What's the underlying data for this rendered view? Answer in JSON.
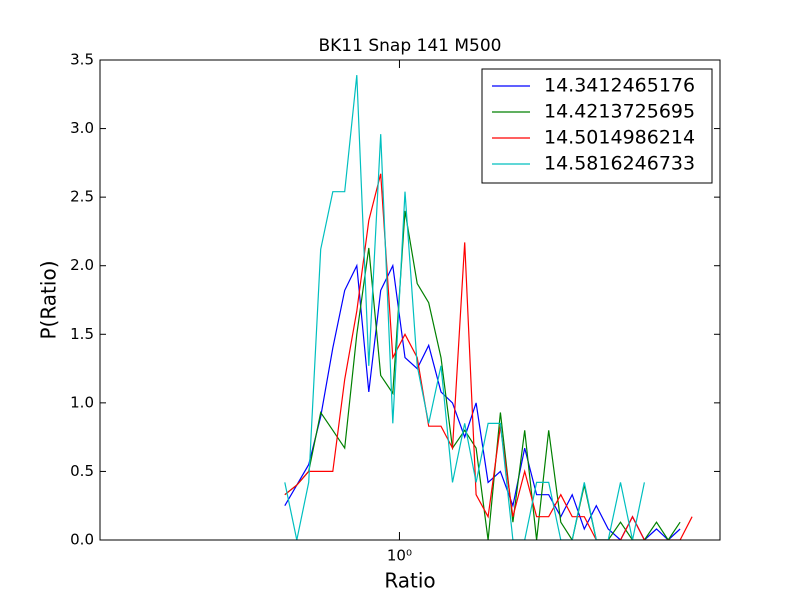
{
  "chart_data": {
    "type": "line",
    "title": "BK11 Snap 141 M500",
    "xlabel": "Ratio",
    "ylabel": "P(Ratio)",
    "xscale": "log",
    "legend": "upper right",
    "xlim": [
      0.2,
      5.6
    ],
    "xticks": [
      {
        "value": 1,
        "label": "10⁰"
      }
    ],
    "ylim": [
      0,
      3.5
    ],
    "yticks": [
      {
        "value": 0,
        "label": "0.0"
      },
      0.5,
      {
        "value": 1,
        "label": "1.0"
      },
      1.5,
      {
        "value": 2,
        "label": "2.0"
      },
      2.5,
      {
        "value": 3,
        "label": "3.0"
      },
      3.5
    ],
    "x": [
      0.54,
      0.576,
      0.614,
      0.655,
      0.699,
      0.745,
      0.795,
      0.848,
      0.904,
      0.965,
      1.03,
      1.1,
      1.17,
      1.25,
      1.33,
      1.42,
      1.51,
      1.61,
      1.72,
      1.84,
      1.96,
      2.09,
      2.23,
      2.38,
      2.53,
      2.7,
      2.88,
      3.07,
      3.28,
      3.5,
      3.73,
      3.98,
      4.24,
      4.52,
      4.82
    ],
    "series": [
      {
        "name": "14.3412465176",
        "color": "#0000ff",
        "values": [
          0.25,
          0.4,
          0.55,
          0.9,
          1.4,
          1.82,
          2.0,
          1.08,
          1.82,
          2.0,
          1.33,
          1.25,
          1.42,
          1.08,
          1.0,
          0.75,
          1.0,
          0.42,
          0.5,
          0.25,
          0.67,
          0.33,
          0.33,
          0.17,
          0.33,
          0.08,
          0.25,
          0.08,
          0.0,
          0.17,
          0.0,
          0.08,
          0.0,
          0.08,
          null
        ]
      },
      {
        "name": "14.4213725695",
        "color": "#008000",
        "values": [
          0.33,
          0.4,
          0.5,
          0.93,
          0.8,
          0.67,
          1.5,
          2.13,
          1.2,
          1.07,
          2.4,
          1.87,
          1.73,
          1.33,
          0.67,
          0.8,
          0.67,
          0.0,
          0.93,
          0.13,
          0.8,
          0.0,
          0.8,
          0.13,
          0.0,
          0.4,
          0.0,
          0.0,
          0.13,
          0.0,
          0.0,
          0.13,
          0.0,
          0.13,
          null
        ]
      },
      {
        "name": "14.5014986214",
        "color": "#ff0000",
        "values": [
          0.33,
          0.4,
          0.5,
          0.5,
          0.5,
          1.17,
          1.67,
          2.33,
          2.67,
          1.33,
          1.5,
          1.33,
          0.83,
          0.83,
          0.67,
          2.17,
          0.33,
          0.17,
          0.83,
          0.17,
          0.5,
          0.17,
          0.17,
          0.33,
          0.17,
          0.17,
          0.0,
          0.0,
          0.0,
          0.17,
          0.0,
          0.0,
          0.0,
          0.0,
          0.17
        ]
      },
      {
        "name": "14.5816246733",
        "color": "#00bfbf",
        "values": [
          0.42,
          0.0,
          0.42,
          2.12,
          2.54,
          2.54,
          3.39,
          1.27,
          2.96,
          0.85,
          2.54,
          1.27,
          0.85,
          1.27,
          0.42,
          0.85,
          0.42,
          0.85,
          0.85,
          0.0,
          0.0,
          0.42,
          0.42,
          0.0,
          0.0,
          0.42,
          0.0,
          0.0,
          0.42,
          0.0,
          0.42,
          null,
          null,
          null,
          null
        ]
      }
    ]
  }
}
